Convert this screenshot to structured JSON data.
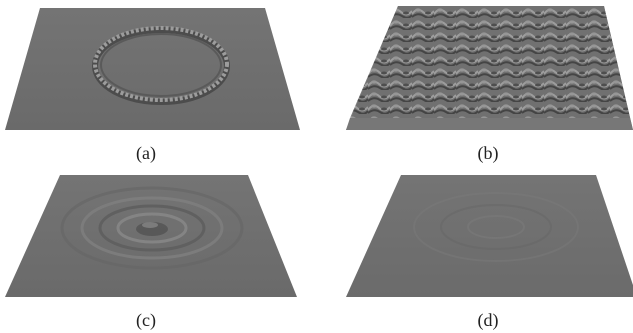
{
  "panels": [
    {
      "label": "(a)",
      "description_kind": "ring-ripple"
    },
    {
      "label": "(b)",
      "description_kind": "turbulent-surface"
    },
    {
      "label": "(c)",
      "description_kind": "concentric-damped"
    },
    {
      "label": "(d)",
      "description_kind": "nearly-flat"
    }
  ],
  "colors": {
    "surface": "#6e6e6e",
    "surface_light": "#8a8a8a",
    "surface_dark": "#4e4e4e",
    "text": "#222222"
  }
}
